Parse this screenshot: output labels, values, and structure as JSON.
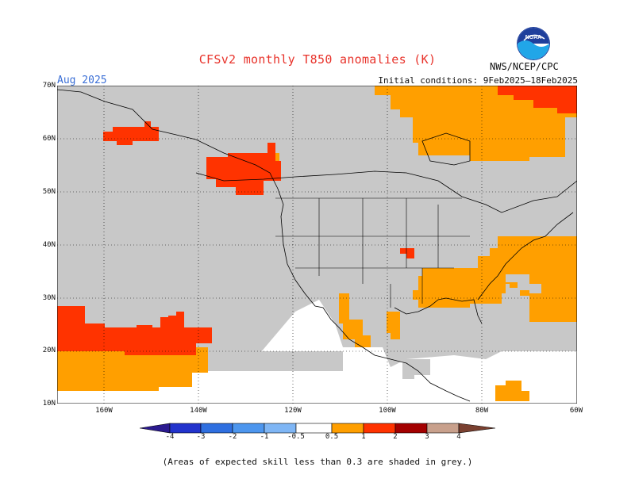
{
  "title": "CFSv2 monthly T850 anomalies (K)",
  "month_label": "Aug 2025",
  "initial_conditions": "Initial conditions: 9Feb2025–18Feb2025",
  "agency": "NWS/NCEP/CPC",
  "logo_icon": "noaa-logo-icon",
  "map": {
    "lat_labels": [
      "70N",
      "60N",
      "50N",
      "40N",
      "30N",
      "20N",
      "10N"
    ],
    "lon_labels": [
      "160W",
      "140W",
      "120W",
      "100W",
      "80W",
      "60W"
    ],
    "lat_range": [
      10,
      70
    ],
    "lon_range": [
      -170,
      -60
    ],
    "colors": {
      "grey": "#c8c8c8",
      "orange": "#ff9f00",
      "red_orange": "#ff3300",
      "dark_red": "#a30000",
      "land_outline": "#000000"
    }
  },
  "colorbar": {
    "labels": [
      "-4",
      "-3",
      "-2",
      "-1",
      "-0.5",
      "0.5",
      "1",
      "2",
      "3",
      "4"
    ],
    "colors": [
      "#2b1a8f",
      "#2233cc",
      "#2f6fe0",
      "#4d96ee",
      "#7fb6f5",
      "#ffffff",
      "#ff9f00",
      "#ff3300",
      "#a30000",
      "#c8a08c",
      "#7a4030"
    ]
  },
  "footnote": "(Areas of expected skill less than 0.3 are shaded in grey.)"
}
